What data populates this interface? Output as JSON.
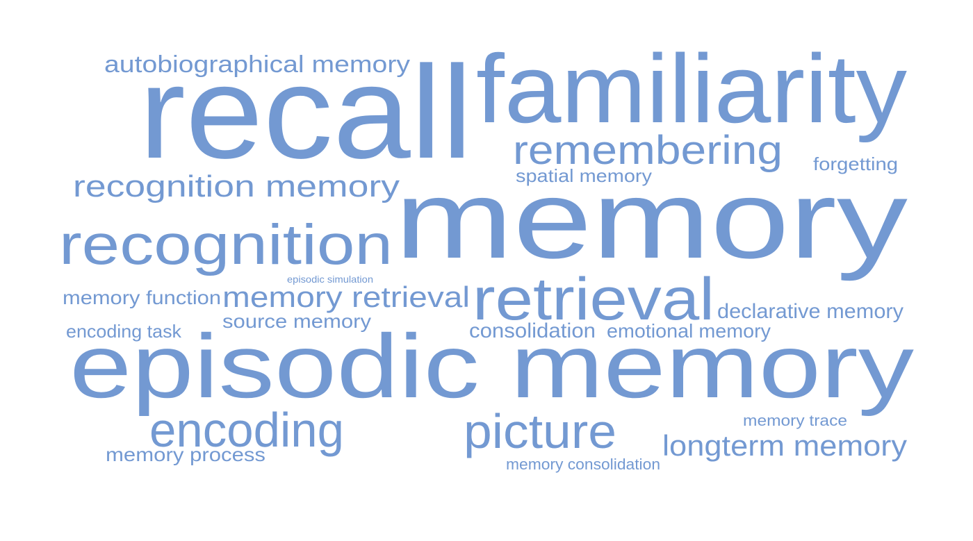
{
  "cloud": {
    "color": "#7399d2",
    "words": [
      {
        "name": "word-autobiographical-memory",
        "text": "autobiographical memory"
      },
      {
        "name": "word-recall",
        "text": "recall"
      },
      {
        "name": "word-familiarity",
        "text": "familiarity"
      },
      {
        "name": "word-remembering",
        "text": "remembering"
      },
      {
        "name": "word-forgetting",
        "text": "forgetting"
      },
      {
        "name": "word-spatial-memory",
        "text": "spatial memory"
      },
      {
        "name": "word-recognition-memory",
        "text": "recognition memory"
      },
      {
        "name": "word-memory",
        "text": "memory"
      },
      {
        "name": "word-recognition",
        "text": "recognition"
      },
      {
        "name": "word-episodic-simulation",
        "text": "episodic simulation"
      },
      {
        "name": "word-memory-function",
        "text": "memory function"
      },
      {
        "name": "word-memory-retrieval",
        "text": "memory retrieval"
      },
      {
        "name": "word-retrieval",
        "text": "retrieval"
      },
      {
        "name": "word-declarative-memory",
        "text": "declarative memory"
      },
      {
        "name": "word-source-memory",
        "text": "source memory"
      },
      {
        "name": "word-encoding-task",
        "text": "encoding task"
      },
      {
        "name": "word-consolidation",
        "text": "consolidation"
      },
      {
        "name": "word-emotional-memory",
        "text": "emotional memory"
      },
      {
        "name": "word-episodic-memory",
        "text": "episodic memory"
      },
      {
        "name": "word-encoding",
        "text": "encoding"
      },
      {
        "name": "word-picture",
        "text": "picture"
      },
      {
        "name": "word-memory-trace",
        "text": "memory trace"
      },
      {
        "name": "word-longterm-memory",
        "text": "longterm memory"
      },
      {
        "name": "word-memory-process",
        "text": "memory process"
      },
      {
        "name": "word-memory-consolidation",
        "text": "memory consolidation"
      }
    ]
  }
}
